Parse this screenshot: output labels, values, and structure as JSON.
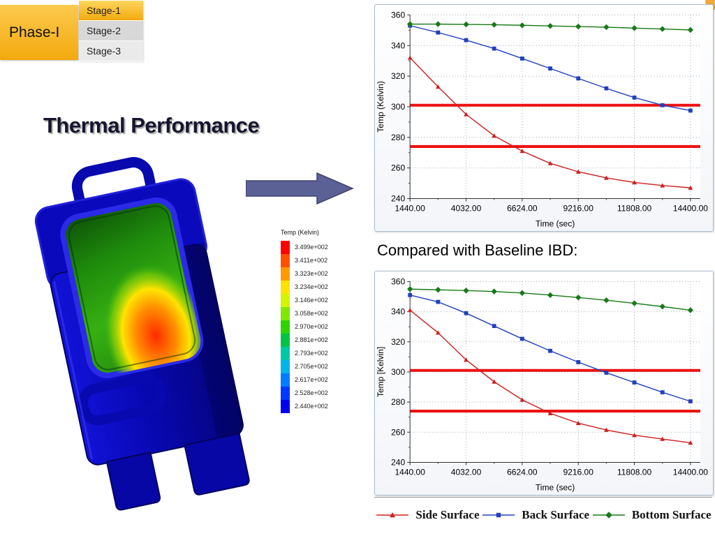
{
  "page": {
    "phase_label": "Phase-I",
    "stages": [
      {
        "label": "Stage-1",
        "active": true
      },
      {
        "label": "Stage-2",
        "active": false
      },
      {
        "label": "Stage-3",
        "active": false
      }
    ],
    "title": "Thermal Performance",
    "compare_text": "Compared with Baseline IBD:"
  },
  "colorbar": {
    "title": "Temp (Kelvin)",
    "entries": [
      {
        "label": "3.499e+002",
        "color": "#fd0000"
      },
      {
        "label": "3.411e+002",
        "color": "#ff5000"
      },
      {
        "label": "3.323e+002",
        "color": "#ff9b00"
      },
      {
        "label": "3.234e+002",
        "color": "#ffe200"
      },
      {
        "label": "3.146e+002",
        "color": "#d2f500"
      },
      {
        "label": "3.058e+002",
        "color": "#7fe800"
      },
      {
        "label": "2.970e+002",
        "color": "#2cd500"
      },
      {
        "label": "2.881e+002",
        "color": "#00c445"
      },
      {
        "label": "2.793e+002",
        "color": "#00c9a5"
      },
      {
        "label": "2.705e+002",
        "color": "#00b5e8"
      },
      {
        "label": "2.617e+002",
        "color": "#007cff"
      },
      {
        "label": "2.528e+002",
        "color": "#0038ff"
      },
      {
        "label": "2.440e+002",
        "color": "#0000ef"
      }
    ]
  },
  "legend": [
    {
      "label": "Side Surface",
      "color": "#cc2020",
      "marker": "triangle"
    },
    {
      "label": "Back Surface",
      "color": "#2040c0",
      "marker": "square"
    },
    {
      "label": "Bottom Surface",
      "color": "#187818",
      "marker": "diamond"
    }
  ],
  "chart_data": [
    {
      "type": "line",
      "title": "",
      "xlabel": "Time (sec)",
      "ylabel": "Temp (Kelvin)",
      "xlim": [
        1440,
        14400
      ],
      "ylim": [
        240,
        360
      ],
      "grid": true,
      "xticks": [
        1440,
        4032,
        6624,
        9216,
        11808,
        14400
      ],
      "xtick_labels": [
        "1440.00",
        "4032.00",
        "6624.00",
        "9216.00",
        "11808.00",
        "14400.00"
      ],
      "yticks": [
        240,
        260,
        280,
        300,
        320,
        340,
        360
      ],
      "x": [
        1440,
        2736,
        4032,
        5328,
        6624,
        7920,
        9216,
        10512,
        11808,
        13104,
        14400
      ],
      "series": [
        {
          "name": "Side Surface",
          "color": "#cc2020",
          "marker": "triangle",
          "values": [
            332,
            313,
            295,
            281,
            271,
            263,
            257.5,
            253.5,
            250.5,
            248.5,
            247
          ]
        },
        {
          "name": "Back Surface",
          "color": "#2040c0",
          "marker": "square",
          "values": [
            353,
            348.5,
            343.5,
            338,
            331.5,
            325,
            318.5,
            312,
            306,
            301,
            297.5
          ]
        },
        {
          "name": "Bottom Surface",
          "color": "#187818",
          "marker": "diamond",
          "values": [
            354,
            354,
            353.8,
            353.6,
            353.2,
            352.8,
            352.4,
            352,
            351.4,
            350.8,
            350.2
          ]
        }
      ],
      "hlines": [
        {
          "y": 301,
          "color": "#ee1111",
          "width": 4
        },
        {
          "y": 274,
          "color": "#ee1111",
          "width": 4
        }
      ]
    },
    {
      "type": "line",
      "title": "",
      "xlabel": "Time (sec)",
      "ylabel": "Temp [Kelvin]",
      "xlim": [
        1440,
        14400
      ],
      "ylim": [
        240,
        360
      ],
      "grid": true,
      "xticks": [
        1440,
        4032,
        6624,
        9216,
        11808,
        14400
      ],
      "xtick_labels": [
        "1440.00",
        "4032.00",
        "6624.00",
        "9216.00",
        "11808.00",
        "14400.00"
      ],
      "yticks": [
        240,
        260,
        280,
        300,
        320,
        340,
        360
      ],
      "x": [
        1440,
        2736,
        4032,
        5328,
        6624,
        7920,
        9216,
        10512,
        11808,
        13104,
        14400
      ],
      "series": [
        {
          "name": "Side Surface",
          "color": "#cc2020",
          "marker": "triangle",
          "values": [
            341,
            326,
            308,
            293.5,
            281.5,
            272.5,
            266,
            261.5,
            258,
            255.5,
            253
          ]
        },
        {
          "name": "Back Surface",
          "color": "#2040c0",
          "marker": "square",
          "values": [
            351,
            346.5,
            339,
            330.5,
            322,
            314,
            306.5,
            299.5,
            293,
            286.5,
            280.5
          ]
        },
        {
          "name": "Bottom Surface",
          "color": "#187818",
          "marker": "diamond",
          "values": [
            355,
            354.5,
            354,
            353.4,
            352.4,
            351,
            349.4,
            347.6,
            345.6,
            343.4,
            341
          ]
        }
      ],
      "hlines": [
        {
          "y": 301,
          "color": "#ee1111",
          "width": 4
        },
        {
          "y": 274,
          "color": "#ee1111",
          "width": 4
        }
      ]
    }
  ]
}
